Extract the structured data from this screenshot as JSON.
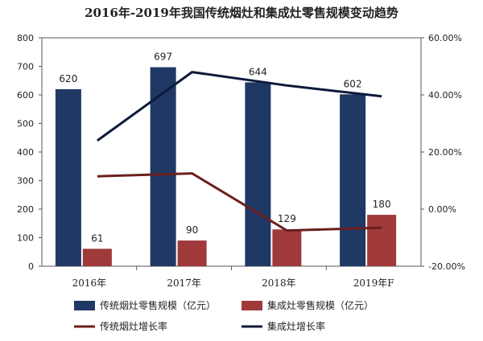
{
  "chart_data": {
    "type": "bar",
    "title": "2016年-2019年我国传统烟灶和集成灶零售规模变动趋势",
    "categories": [
      "2016年",
      "2017年",
      "2018年",
      "2019年F"
    ],
    "left_axis": {
      "ylim": [
        0,
        800
      ],
      "ticks": [
        "0",
        "100",
        "200",
        "300",
        "400",
        "500",
        "600",
        "700",
        "800"
      ]
    },
    "right_axis": {
      "ylim": [
        -20,
        60
      ],
      "ticks": [
        "-20.00%",
        "0.00%",
        "20.00%",
        "40.00%",
        "60.00%"
      ]
    },
    "bar_series": [
      {
        "name": "传统烟灶零售规模（亿元）",
        "color": "#1f3864",
        "values": [
          620,
          697,
          644,
          602
        ],
        "labels": [
          "620",
          "697",
          "644",
          "602"
        ]
      },
      {
        "name": "集成灶零售规模（亿元）",
        "color": "#a0393a",
        "values": [
          61,
          90,
          129,
          180
        ],
        "labels": [
          "61",
          "90",
          "129",
          "180"
        ]
      }
    ],
    "line_series": [
      {
        "name": "传统烟灶增长率",
        "color": "#6b1f1f",
        "values": [
          11.5,
          12.5,
          -7.5,
          -6.5
        ]
      },
      {
        "name": "集成灶增长率",
        "color": "#0d1a3a",
        "values": [
          24.0,
          48.0,
          43.3,
          39.5
        ]
      }
    ],
    "legend_position": "bottom",
    "grid": false
  }
}
